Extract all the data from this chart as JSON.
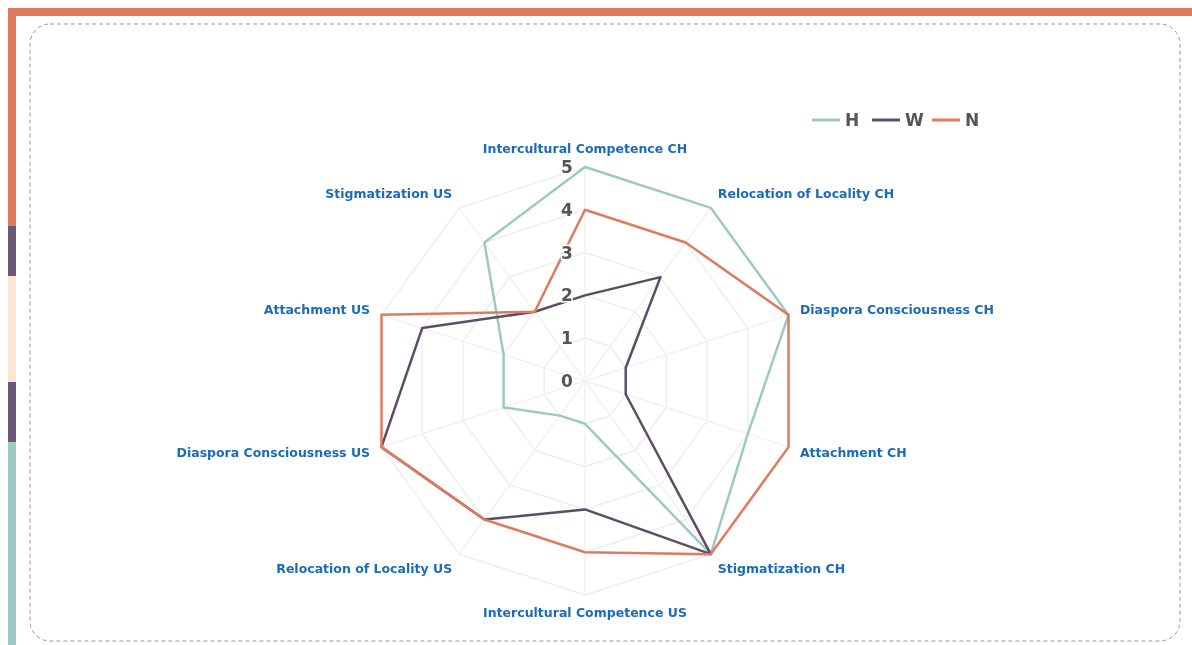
{
  "chart_data": {
    "type": "radar",
    "categories": [
      "Intercultural Competence CH",
      "Relocation of Locality CH",
      "Diaspora Consciousness CH",
      "Attachment CH",
      "Stigmatization CH",
      "Intercultural Competence US",
      "Relocation of Locality US",
      "Diaspora Consciousness US",
      "Attachment US",
      "Stigmatization US"
    ],
    "series": [
      {
        "name": "H",
        "color": "#9ccac3",
        "values": [
          5,
          5,
          5,
          4,
          5,
          1,
          1,
          2,
          2,
          4
        ]
      },
      {
        "name": "W",
        "color": "#5e4b68",
        "values": [
          2,
          3,
          1,
          1,
          5,
          3,
          4,
          5,
          4,
          2
        ]
      },
      {
        "name": "N",
        "color": "#e07a5f",
        "values": [
          4,
          4,
          5,
          5,
          5,
          4,
          4,
          5,
          5,
          2
        ]
      }
    ],
    "ylim": [
      0,
      5
    ],
    "yticks": [
      0,
      1,
      2,
      3,
      4,
      5
    ],
    "grid": true,
    "legend": "top right"
  }
}
